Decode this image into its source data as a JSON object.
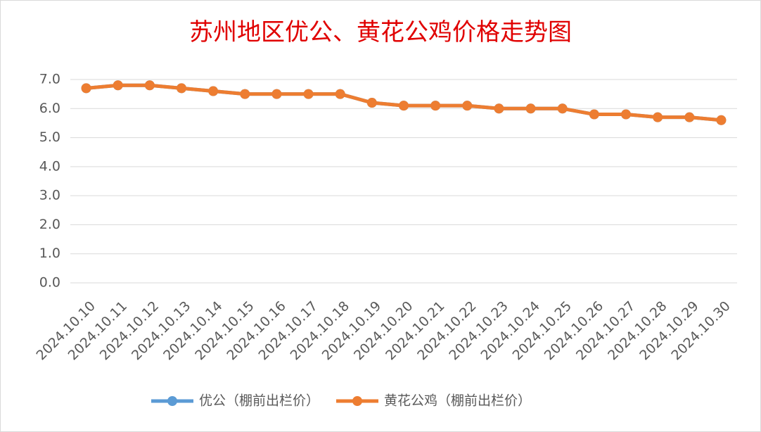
{
  "chart_data": {
    "type": "line",
    "title": "苏州地区优公、黄花公鸡价格走势图",
    "categories": [
      "2024.10.10",
      "2024.10.11",
      "2024.10.12",
      "2024.10.13",
      "2024.10.14",
      "2024.10.15",
      "2024.10.16",
      "2024.10.17",
      "2024.10.18",
      "2024.10.19",
      "2024.10.20",
      "2024.10.21",
      "2024.10.22",
      "2024.10.23",
      "2024.10.24",
      "2024.10.25",
      "2024.10.26",
      "2024.10.27",
      "2024.10.28",
      "2024.10.29",
      "2024.10.30"
    ],
    "series": [
      {
        "name": "优公（棚前出栏价）",
        "color": "#5b9bd5",
        "values": [
          6.7,
          6.8,
          6.8,
          6.7,
          6.6,
          6.5,
          6.5,
          6.5,
          6.5,
          6.2,
          6.1,
          6.1,
          6.1,
          6.0,
          6.0,
          6.0,
          5.8,
          5.8,
          5.7,
          5.7,
          5.6
        ]
      },
      {
        "name": "黄花公鸡（棚前出栏价）",
        "color": "#ed7d31",
        "values": [
          6.7,
          6.8,
          6.8,
          6.7,
          6.6,
          6.5,
          6.5,
          6.5,
          6.5,
          6.2,
          6.1,
          6.1,
          6.1,
          6.0,
          6.0,
          6.0,
          5.8,
          5.8,
          5.7,
          5.7,
          5.6
        ]
      }
    ],
    "ylim": [
      0,
      7
    ],
    "yticks": [
      {
        "value": 0,
        "label": "0.0"
      },
      {
        "value": 1,
        "label": "1.0"
      },
      {
        "value": 2,
        "label": "2.0"
      },
      {
        "value": 3,
        "label": "3.0"
      },
      {
        "value": 4,
        "label": "4.0"
      },
      {
        "value": 5,
        "label": "5.0"
      },
      {
        "value": 6,
        "label": "6.0"
      },
      {
        "value": 7,
        "label": "7.0"
      }
    ],
    "grid": true,
    "legend": "bottom"
  }
}
